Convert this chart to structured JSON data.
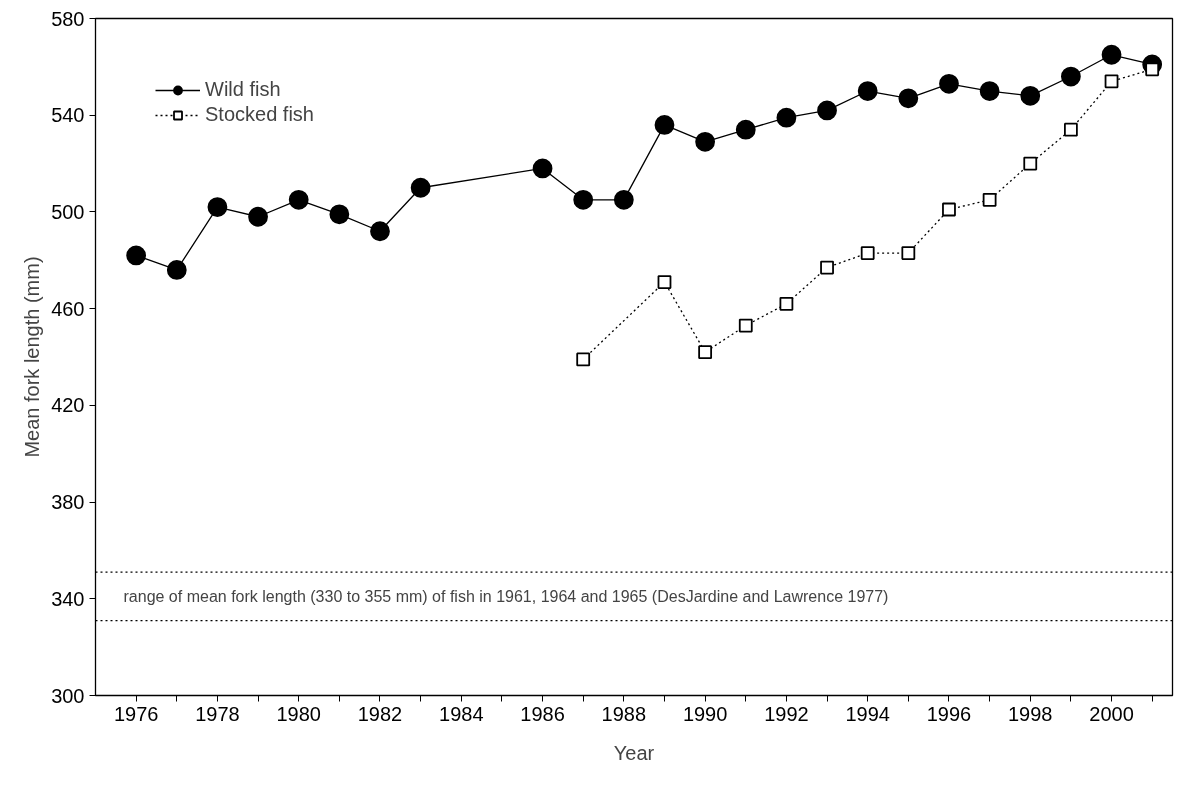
{
  "chart_data": {
    "type": "line",
    "xlabel": "Year",
    "ylabel": "Mean fork length (mm)",
    "x": [
      1976,
      1977,
      1978,
      1979,
      1980,
      1981,
      1982,
      1983,
      1986,
      1987,
      1988,
      1989,
      1990,
      1991,
      1992,
      1993,
      1994,
      1995,
      1996,
      1997,
      1998,
      1999,
      2000,
      2001
    ],
    "series": [
      {
        "name": "Wild fish",
        "color": "#000000",
        "marker": "circle",
        "line_style": "solid",
        "values": [
          482,
          476,
          502,
          498,
          505,
          499,
          492,
          510,
          518,
          505,
          505,
          536,
          529,
          534,
          539,
          542,
          550,
          547,
          553,
          550,
          548,
          556,
          565,
          561
        ]
      },
      {
        "name": "Stocked fish",
        "color": "#000000",
        "marker": "square",
        "line_style": "dotted",
        "x": [
          1987,
          1989,
          1990,
          1991,
          1992,
          1993,
          1994,
          1995,
          1996,
          1997,
          1998,
          1999,
          2000,
          2001
        ],
        "values": [
          439,
          471,
          442,
          453,
          462,
          477,
          483,
          483,
          501,
          505,
          520,
          534,
          554,
          559
        ]
      }
    ],
    "xlim": [
      1975,
      2001.5
    ],
    "ylim": [
      300,
      580
    ],
    "xticks": [
      1976,
      {
        "value": 1977,
        "label": null
      },
      1978,
      {
        "value": 1979,
        "label": null
      },
      1980,
      {
        "value": 1981,
        "label": null
      },
      1982,
      {
        "value": 1983,
        "label": null
      },
      1984,
      {
        "value": 1985,
        "label": null
      },
      1986,
      {
        "value": 1987,
        "label": null
      },
      1988,
      {
        "value": 1989,
        "label": null
      },
      1990,
      {
        "value": 1991,
        "label": null
      },
      1992,
      {
        "value": 1993,
        "label": null
      },
      1994,
      {
        "value": 1995,
        "label": null
      },
      1996,
      {
        "value": 1997,
        "label": null
      },
      1998,
      {
        "value": 1999,
        "label": null
      },
      2000,
      {
        "value": 2001,
        "label": null
      }
    ],
    "yticks": [
      300,
      340,
      380,
      420,
      460,
      500,
      540,
      580
    ],
    "ref_lines": [
      {
        "axis": "y",
        "value": 351,
        "color": "#000000",
        "line_style": "dotted"
      },
      {
        "axis": "y",
        "value": 331,
        "color": "#000000",
        "line_style": "dotted"
      }
    ],
    "annotations": [
      "range of mean fork length (330 to 355 mm) of fish in 1961, 1964 and 1965 (DesJardine and Lawrence 1977)"
    ],
    "legend": "top left",
    "grid": false
  }
}
